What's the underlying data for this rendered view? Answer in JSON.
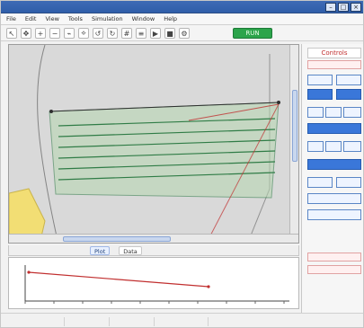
{
  "window": {
    "title": "",
    "buttons": {
      "minimize": "–",
      "maximize": "□",
      "close": "×"
    }
  },
  "menu": {
    "items": [
      "File",
      "Edit",
      "View",
      "Tools",
      "Simulation",
      "Window",
      "Help"
    ]
  },
  "toolbar": {
    "buttons": [
      {
        "name": "select-tool",
        "glyph": "↖"
      },
      {
        "name": "pan-tool",
        "glyph": "✥"
      },
      {
        "name": "zoom-in-tool",
        "glyph": "+"
      },
      {
        "name": "zoom-out-tool",
        "glyph": "−"
      },
      {
        "name": "measure-tool",
        "glyph": "⌁"
      },
      {
        "name": "draw-path-tool",
        "glyph": "⟡"
      },
      {
        "name": "undo-tool",
        "glyph": "↺"
      },
      {
        "name": "redo-tool",
        "glyph": "↻"
      },
      {
        "name": "grid-toggle",
        "glyph": "#"
      },
      {
        "name": "layers-tool",
        "glyph": "≡"
      },
      {
        "name": "run-tool",
        "glyph": "▶"
      },
      {
        "name": "stop-tool",
        "glyph": "■"
      },
      {
        "name": "settings-tool",
        "glyph": "⚙"
      }
    ],
    "status_pill": "RUN"
  },
  "right_panel": {
    "header": "Controls",
    "sub": "",
    "tiles": [
      {
        "label": "",
        "style": "light"
      },
      {
        "label": "",
        "style": "light"
      },
      {
        "label": "",
        "style": "strong"
      },
      {
        "label": "",
        "style": "strong"
      },
      {
        "label": "",
        "style": "light"
      },
      {
        "label": "",
        "style": "light"
      },
      {
        "label": "",
        "style": "light"
      },
      {
        "label": "",
        "style": "strong"
      },
      {
        "label": "",
        "style": "light"
      },
      {
        "label": "",
        "style": "light"
      },
      {
        "label": "",
        "style": "light"
      },
      {
        "label": "",
        "style": "strong"
      },
      {
        "label": "",
        "style": "light"
      },
      {
        "label": "",
        "style": "light"
      },
      {
        "label": "",
        "style": "light"
      },
      {
        "label": "",
        "style": "light"
      }
    ],
    "red_boxes": [
      "",
      ""
    ]
  },
  "bottom_tabs": {
    "items": [
      {
        "label": "Plot",
        "active": true
      },
      {
        "label": "Data",
        "active": false
      }
    ]
  },
  "statusbar": {
    "segments": [
      "",
      "",
      "",
      "",
      ""
    ]
  },
  "colors": {
    "map_bg": "#d9d9d9",
    "field_fill": "#b6d6b1",
    "field_stroke": "#2f7c46",
    "boundary": "#4b4b4b",
    "accent_red": "#c12f2f",
    "yellow_area": "#f2de74"
  }
}
